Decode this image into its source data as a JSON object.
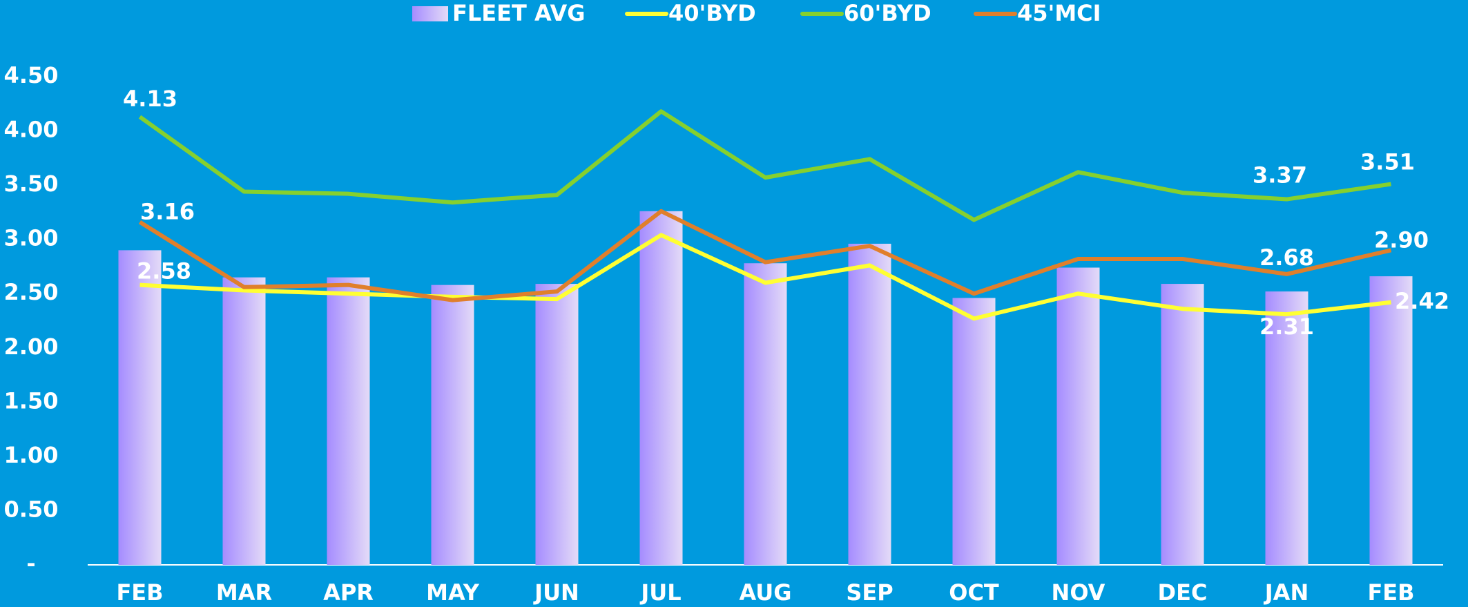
{
  "chart_data": {
    "type": "bar-line",
    "categories": [
      "FEB",
      "MAR",
      "APR",
      "MAY",
      "JUN",
      "JUL",
      "AUG",
      "SEP",
      "OCT",
      "NOV",
      "DEC",
      "JAN",
      "FEB"
    ],
    "series": [
      {
        "name": "FLEET AVG",
        "type": "bar",
        "color": "#a58cff",
        "values": [
          2.9,
          2.65,
          2.65,
          2.58,
          2.59,
          3.26,
          2.78,
          2.96,
          2.46,
          2.74,
          2.59,
          2.52,
          2.66
        ]
      },
      {
        "name": "40'BYD",
        "type": "line",
        "color": "#ffff33",
        "values": [
          2.58,
          2.53,
          2.5,
          2.47,
          2.45,
          3.04,
          2.6,
          2.76,
          2.27,
          2.5,
          2.36,
          2.31,
          2.42
        ],
        "value_labels": [
          "2.58",
          null,
          null,
          null,
          null,
          null,
          null,
          null,
          null,
          null,
          null,
          "2.31",
          "2.42"
        ]
      },
      {
        "name": "60'BYD",
        "type": "line",
        "color": "#86d02e",
        "values": [
          4.13,
          3.44,
          3.42,
          3.34,
          3.41,
          4.18,
          3.57,
          3.74,
          3.18,
          3.62,
          3.43,
          3.37,
          3.51
        ],
        "value_labels": [
          "4.13",
          null,
          null,
          null,
          null,
          null,
          null,
          null,
          null,
          null,
          null,
          "3.37",
          "3.51"
        ]
      },
      {
        "name": "45'MCI",
        "type": "line",
        "color": "#e07f2b",
        "values": [
          3.16,
          2.56,
          2.58,
          2.44,
          2.52,
          3.26,
          2.79,
          2.94,
          2.5,
          2.82,
          2.82,
          2.68,
          2.9
        ],
        "value_labels": [
          "3.16",
          null,
          null,
          null,
          null,
          null,
          null,
          null,
          null,
          null,
          null,
          "2.68",
          "2.90"
        ]
      }
    ],
    "ylim": [
      0,
      4.5
    ],
    "yticks": [
      {
        "value": 0,
        "label": "-"
      },
      {
        "value": 0.5,
        "label": "0.50"
      },
      {
        "value": 1,
        "label": "1.00"
      },
      {
        "value": 1.5,
        "label": "1.50"
      },
      {
        "value": 2,
        "label": "2.00"
      },
      {
        "value": 2.5,
        "label": "2.50"
      },
      {
        "value": 3,
        "label": "3.00"
      },
      {
        "value": 3.5,
        "label": "3.50"
      },
      {
        "value": 4,
        "label": "4.00"
      },
      {
        "value": 4.5,
        "label": "4.50"
      }
    ],
    "legend": "top"
  }
}
